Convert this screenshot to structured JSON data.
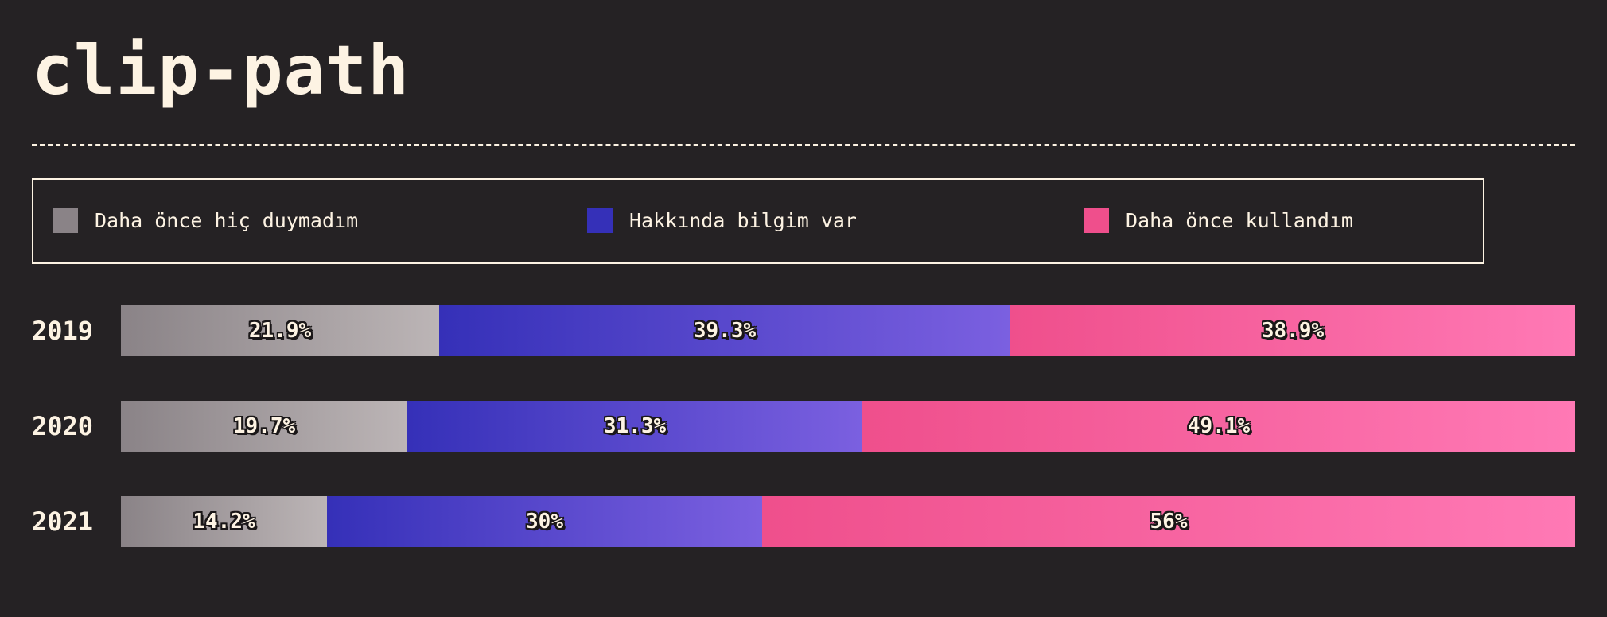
{
  "title": "clip-path",
  "colors": {
    "background": "#252224",
    "text": "#fdf3e3",
    "never_heard_start": "#8a8387",
    "never_heard_end": "#bcb5b6",
    "know_about_start": "#3530b8",
    "know_about_end": "#7b60e0",
    "used_start": "#ef4f8c",
    "used_end": "#ff79b5"
  },
  "legend": [
    {
      "label": "Daha önce hiç duymadım",
      "color": "#8a8387"
    },
    {
      "label": "Hakkında bilgim var",
      "color": "#3530b8"
    },
    {
      "label": "Daha önce kullandım",
      "color": "#ef4f8c"
    }
  ],
  "chart_data": {
    "type": "bar",
    "orientation": "horizontal",
    "stacked": true,
    "normalized": true,
    "title": "clip-path",
    "categories": [
      "2019",
      "2020",
      "2021"
    ],
    "series": [
      {
        "name": "Daha önce hiç duymadım",
        "values": [
          21.9,
          19.7,
          14.2
        ],
        "labels": [
          "21.9%",
          "19.7%",
          "14.2%"
        ]
      },
      {
        "name": "Hakkında bilgim var",
        "values": [
          39.3,
          31.3,
          30
        ],
        "labels": [
          "39.3%",
          "31.3%",
          "30%"
        ]
      },
      {
        "name": "Daha önce kullandım",
        "values": [
          38.9,
          49.1,
          56
        ],
        "labels": [
          "38.9%",
          "49.1%",
          "56%"
        ]
      }
    ],
    "legend_position": "top",
    "grid": false
  }
}
